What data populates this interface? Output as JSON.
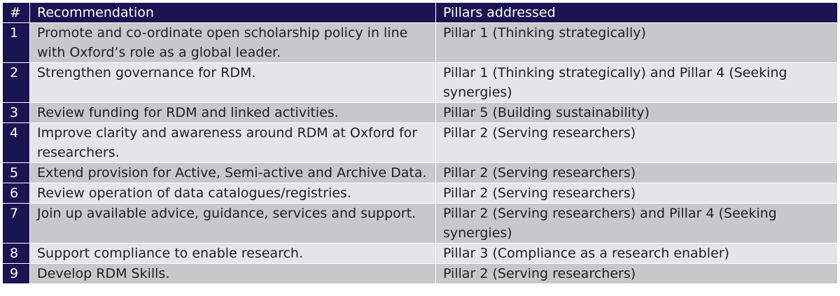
{
  "table": {
    "headers": {
      "num": "#",
      "recommendation": "Recommendation",
      "pillars": "Pillars addressed"
    },
    "rows": [
      {
        "num": "1",
        "recommendation": "Promote and co-ordinate open scholarship policy in line with Oxford’s role as a global leader.",
        "pillars": "Pillar 1 (Thinking strategically)"
      },
      {
        "num": "2",
        "recommendation": "Strengthen governance for RDM.",
        "pillars": "Pillar 1 (Thinking strategically) and Pillar 4 (Seeking synergies)"
      },
      {
        "num": "3",
        "recommendation": "Review funding for RDM and linked activities.",
        "pillars": "Pillar 5 (Building sustainability)"
      },
      {
        "num": "4",
        "recommendation": "Improve clarity and awareness around RDM at Oxford for researchers.",
        "pillars": "Pillar 2 (Serving researchers)"
      },
      {
        "num": "5",
        "recommendation": "Extend provision for Active, Semi-active and Archive Data.",
        "pillars": "Pillar 2 (Serving researchers)"
      },
      {
        "num": "6",
        "recommendation": "Review operation of data catalogues/registries.",
        "pillars": "Pillar 2 (Serving researchers)"
      },
      {
        "num": "7",
        "recommendation": "Join up available advice, guidance, services and support.",
        "pillars": "Pillar 2 (Serving researchers) and Pillar 4 (Seeking synergies)"
      },
      {
        "num": "8",
        "recommendation": "Support compliance to enable research.",
        "pillars": "Pillar 3 (Compliance as a research enabler)"
      },
      {
        "num": "9",
        "recommendation": "Develop RDM Skills.",
        "pillars": "Pillar 2 (Serving researchers)"
      }
    ]
  }
}
